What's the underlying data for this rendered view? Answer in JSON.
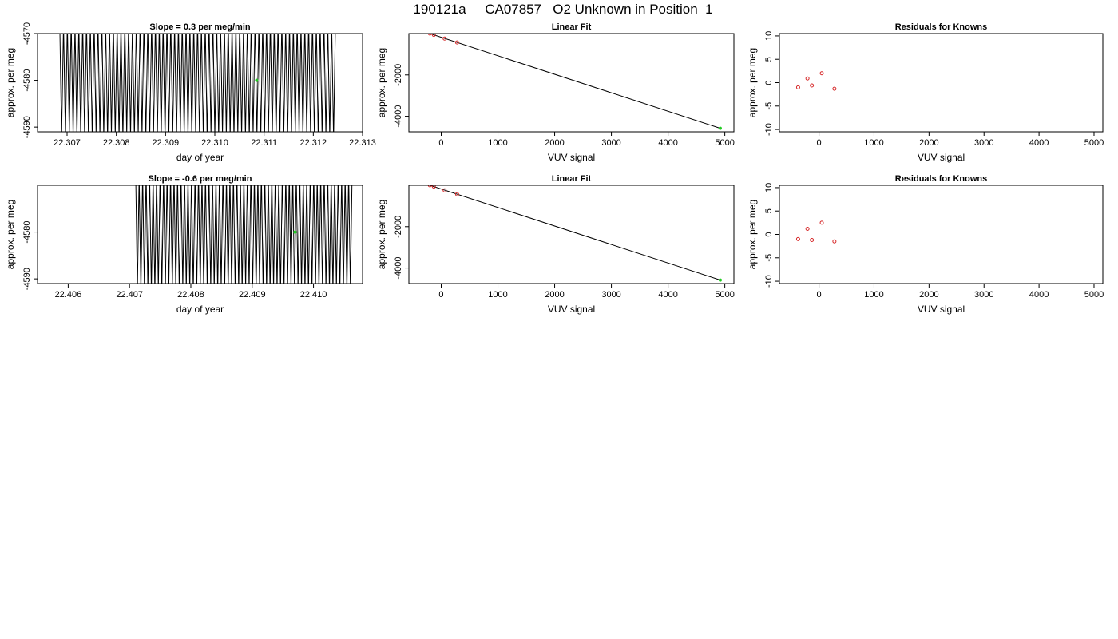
{
  "page": {
    "title": "190121a     CA07857   O2 Unknown in Position  1"
  },
  "colors": {
    "trace": "#000000",
    "known": "#d62728",
    "unknown": "#22cc22",
    "fit": "#000000",
    "frame": "#000000"
  },
  "chart_data": [
    {
      "id": "slope-1",
      "type": "line",
      "title": "Slope =  0.3  per meg/min",
      "xlabel": "day of year",
      "ylabel": "approx. per meg",
      "xlim": [
        22.3064,
        22.313
      ],
      "ylim": [
        -4591,
        -4570
      ],
      "xticks": [
        "22.307",
        "22.308",
        "22.309",
        "22.310",
        "22.311",
        "22.312",
        "22.313"
      ],
      "yticks": [
        "-4590",
        "-4580",
        "-4570"
      ],
      "series": [
        {
          "x_start": 22.30685,
          "x_end": 22.31245,
          "cycles": 72,
          "y_low": -4590.5,
          "y_high": -4570.0
        }
      ],
      "highlight": [
        {
          "x": 22.31085,
          "y": -4580.0
        }
      ]
    },
    {
      "id": "fit-1",
      "type": "scatter",
      "title": "Linear Fit",
      "xlabel": "VUV signal",
      "ylabel": "approx. per meg",
      "xlim": [
        -570,
        5160
      ],
      "ylim": [
        -4750,
        0
      ],
      "xticks": [
        "0",
        "1000",
        "2000",
        "3000",
        "4000",
        "5000"
      ],
      "yticks": [
        "-2000",
        "-4000"
      ],
      "knowns": [
        {
          "x": -380,
          "y": 150
        },
        {
          "x": -200,
          "y": 0
        },
        {
          "x": -130,
          "y": -60
        },
        {
          "x": 60,
          "y": -240
        },
        {
          "x": 280,
          "y": -430
        }
      ],
      "unknown": [
        {
          "x": 4920,
          "y": -4580
        }
      ],
      "fit_line": [
        {
          "x": -490,
          "y": 260
        },
        {
          "x": 4930,
          "y": -4590
        }
      ]
    },
    {
      "id": "resid-1",
      "type": "scatter",
      "title": "Residuals for Knowns",
      "xlabel": "VUV signal",
      "ylabel": "approx. per meg",
      "xlim": [
        -720,
        5160
      ],
      "ylim": [
        -10.5,
        10.5
      ],
      "xticks": [
        "0",
        "1000",
        "2000",
        "3000",
        "4000",
        "5000"
      ],
      "yticks": [
        "-10",
        "-5",
        "0",
        "5",
        "10"
      ],
      "points": [
        {
          "x": -380,
          "y": -1.0
        },
        {
          "x": -210,
          "y": 0.9
        },
        {
          "x": -130,
          "y": -0.6
        },
        {
          "x": 50,
          "y": 2.0
        },
        {
          "x": 280,
          "y": -1.3
        }
      ]
    },
    {
      "id": "slope-2",
      "type": "line",
      "title": "Slope =  -0.6  per meg/min",
      "xlabel": "day of year",
      "ylabel": "approx. per meg",
      "xlim": [
        22.4055,
        22.4108
      ],
      "ylim": [
        -4591,
        -4570
      ],
      "xticks": [
        "22.406",
        "22.407",
        "22.408",
        "22.409",
        "22.410"
      ],
      "yticks": [
        "-4590",
        "-4580"
      ],
      "series": [
        {
          "x_start": 22.4071,
          "x_end": 22.41063,
          "cycles": 62,
          "y_low": -4591.0,
          "y_high": -4570.0
        }
      ],
      "highlight": [
        {
          "x": 22.4097,
          "y": -4580.0
        }
      ]
    },
    {
      "id": "fit-2",
      "type": "scatter",
      "title": "Linear Fit",
      "xlabel": "VUV signal",
      "ylabel": "approx. per meg",
      "xlim": [
        -570,
        5160
      ],
      "ylim": [
        -4750,
        0
      ],
      "xticks": [
        "0",
        "1000",
        "2000",
        "3000",
        "4000",
        "5000"
      ],
      "yticks": [
        "-2000",
        "-4000"
      ],
      "knowns": [
        {
          "x": -380,
          "y": 150
        },
        {
          "x": -200,
          "y": 0
        },
        {
          "x": -130,
          "y": -60
        },
        {
          "x": 60,
          "y": -240
        },
        {
          "x": 280,
          "y": -430
        }
      ],
      "unknown": [
        {
          "x": 4920,
          "y": -4580
        }
      ],
      "fit_line": [
        {
          "x": -490,
          "y": 260
        },
        {
          "x": 4930,
          "y": -4590
        }
      ]
    },
    {
      "id": "resid-2",
      "type": "scatter",
      "title": "Residuals for Knowns",
      "xlabel": "VUV signal",
      "ylabel": "approx. per meg",
      "xlim": [
        -720,
        5160
      ],
      "ylim": [
        -10.5,
        10.5
      ],
      "xticks": [
        "0",
        "1000",
        "2000",
        "3000",
        "4000",
        "5000"
      ],
      "yticks": [
        "-10",
        "-5",
        "0",
        "5",
        "10"
      ],
      "points": [
        {
          "x": -380,
          "y": -1.0
        },
        {
          "x": -210,
          "y": 1.2
        },
        {
          "x": -130,
          "y": -1.2
        },
        {
          "x": 50,
          "y": 2.5
        },
        {
          "x": 280,
          "y": -1.5
        }
      ]
    }
  ]
}
